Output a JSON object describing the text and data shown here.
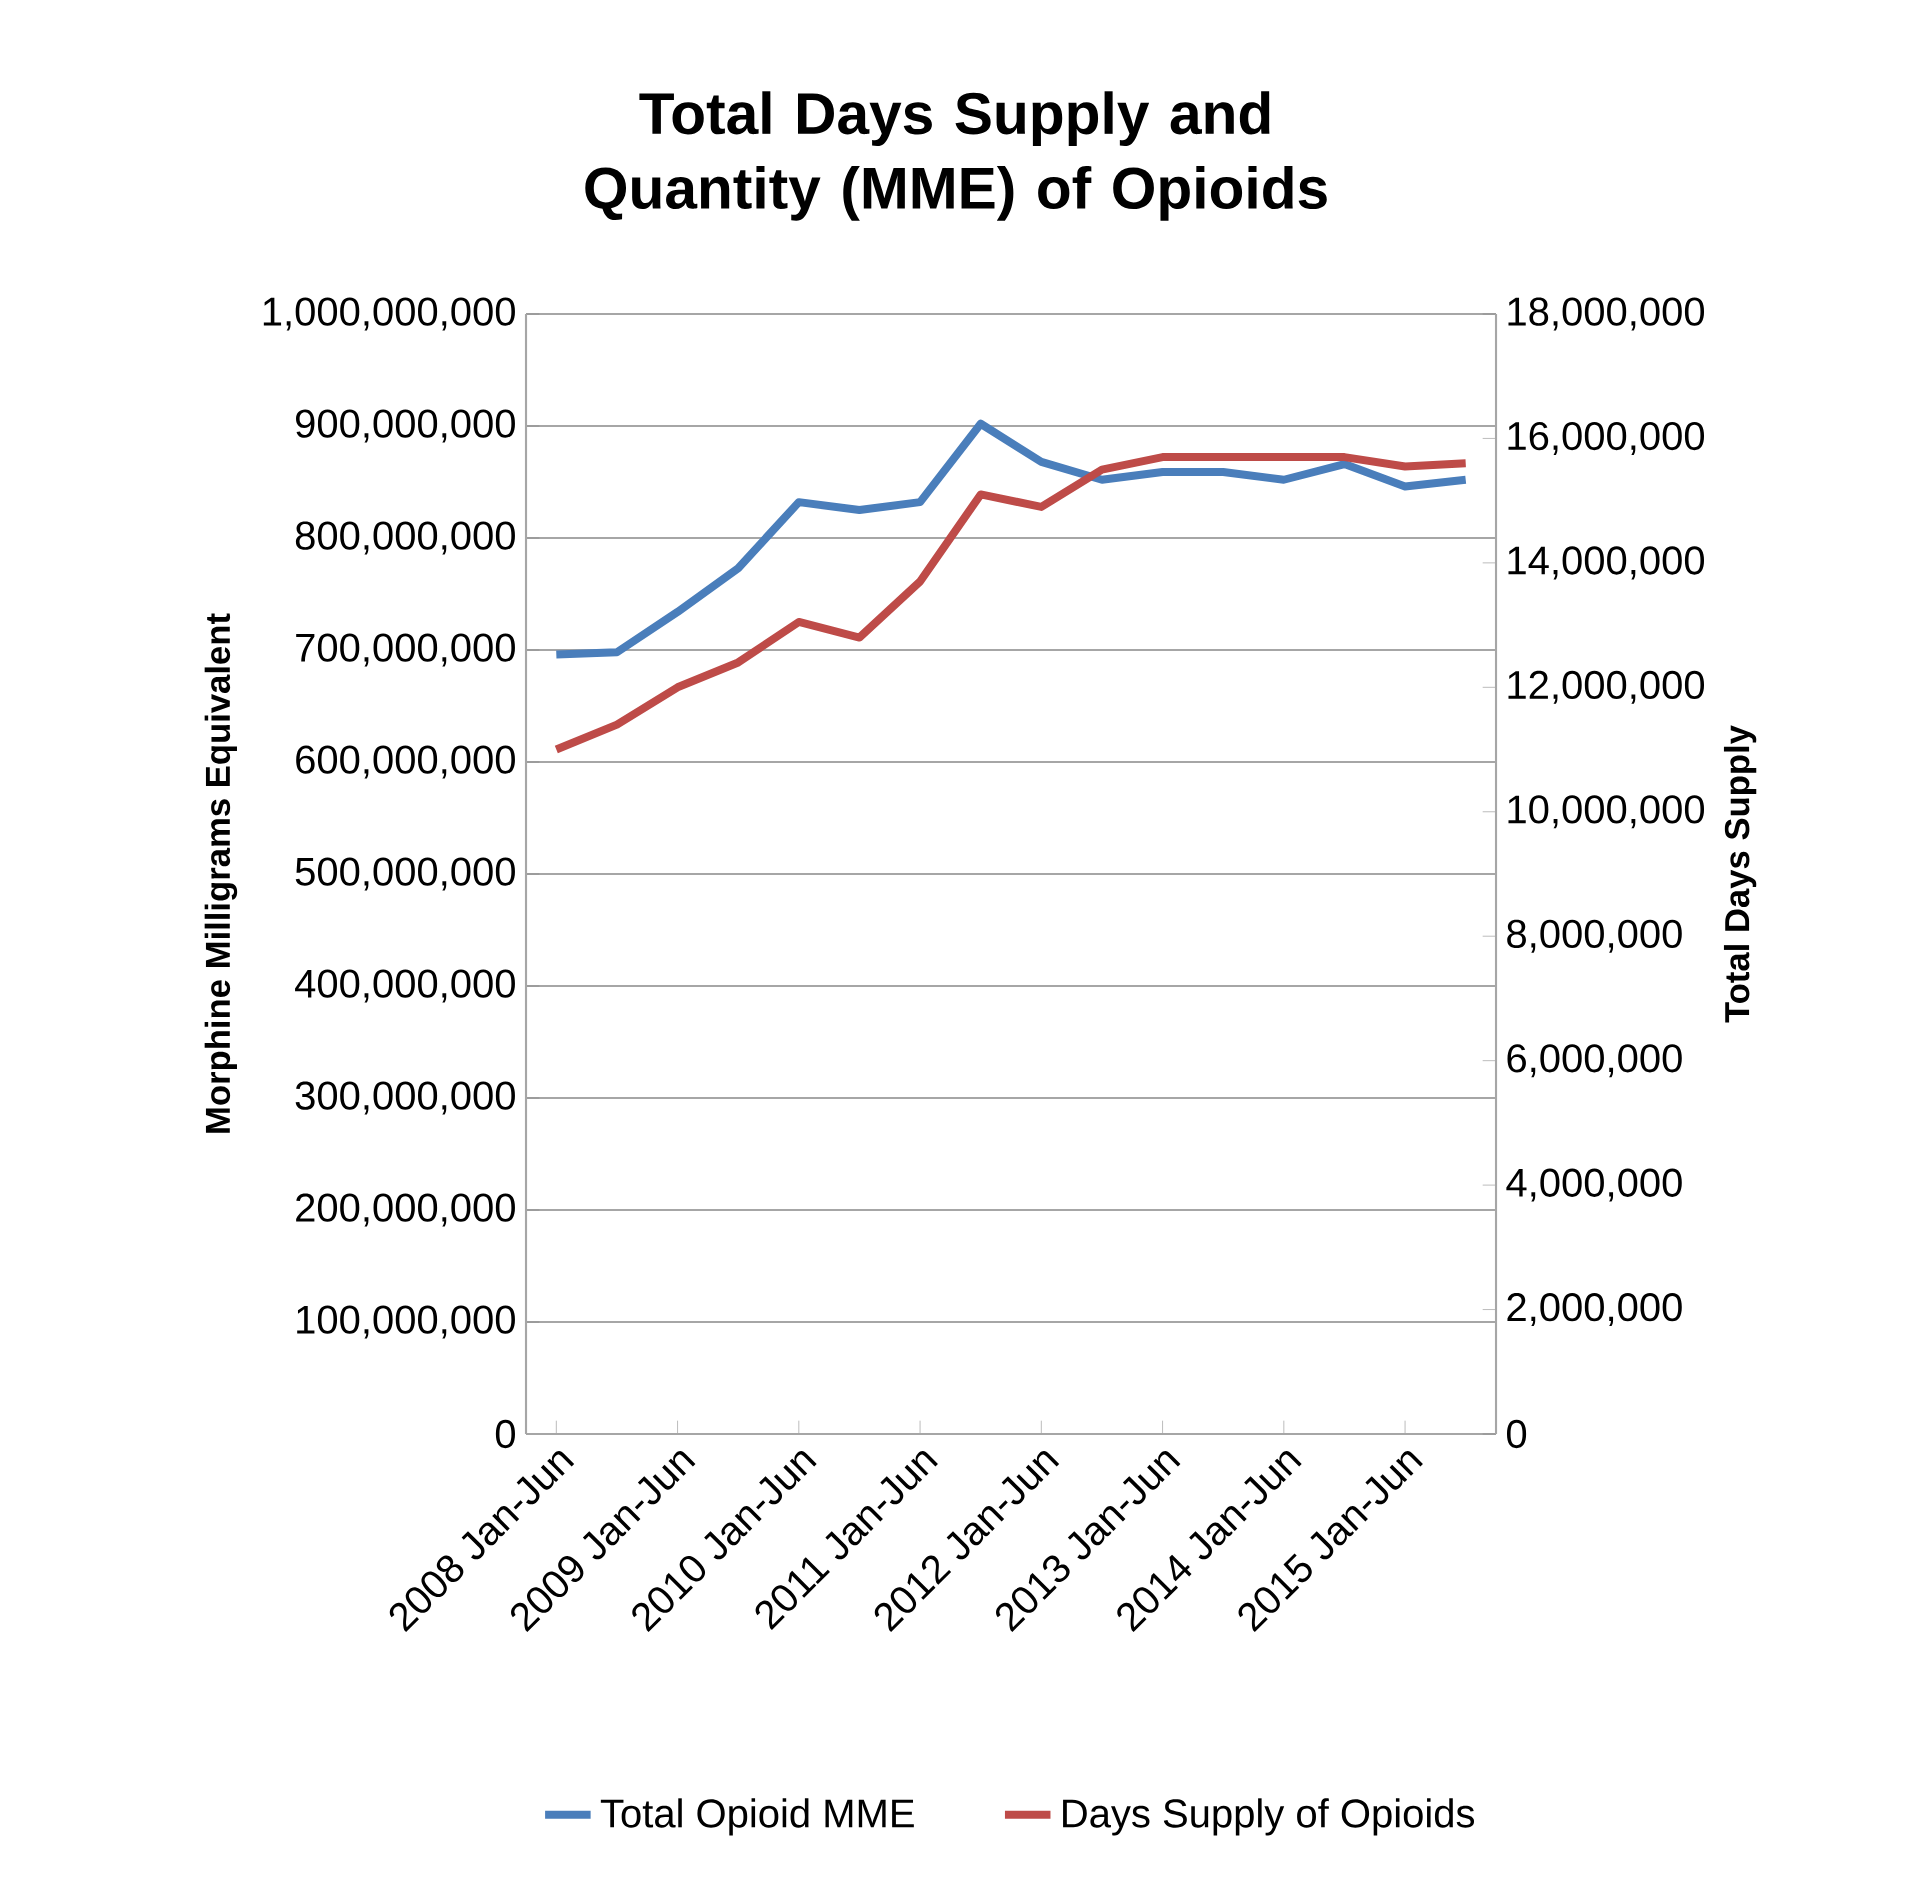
{
  "chart_data": {
    "type": "line",
    "title": "Total Days Supply and Quantity (MME) of Opioids",
    "ylabel": "Morphine Milligrams Equivalent",
    "y2label": "Total Days Supply",
    "categories": [
      "2008 Jan-Jun",
      null,
      "2009 Jan-Jun",
      null,
      "2010 Jan-Jun",
      null,
      "2011 Jan-Jun",
      null,
      "2012 Jan-Jun",
      null,
      "2013 Jan-Jun",
      null,
      "2014 Jan-Jun",
      null,
      "2015 Jan-Jun",
      null
    ],
    "series": [
      {
        "name": "Total Opioid MME",
        "color": "#4a7ebb",
        "values": [
          696000000,
          698000000,
          734000000,
          773000000,
          832000000,
          825000000,
          832000000,
          902000000,
          868000000,
          852000000,
          859000000,
          859000000,
          852000000,
          866000000,
          846000000,
          852000000
        ]
      },
      {
        "name": "Days Supply of Opioids",
        "color": "#be4b48",
        "axis": "y2",
        "values": [
          11000000,
          11400000,
          12000000,
          12400000,
          13050000,
          12800000,
          13700000,
          15100000,
          14900000,
          15500000,
          15700000,
          15700000,
          15700000,
          15700000,
          15550000,
          15600000
        ]
      }
    ],
    "ylim": [
      0,
      1000000000
    ],
    "yticks": [
      {
        "value": 0,
        "label": "0"
      },
      {
        "value": 100000000,
        "label": "100,000,000"
      },
      {
        "value": 200000000,
        "label": "200,000,000"
      },
      {
        "value": 300000000,
        "label": "300,000,000"
      },
      {
        "value": 400000000,
        "label": "400,000,000"
      },
      {
        "value": 500000000,
        "label": "500,000,000"
      },
      {
        "value": 600000000,
        "label": "600,000,000"
      },
      {
        "value": 700000000,
        "label": "700,000,000"
      },
      {
        "value": 800000000,
        "label": "800,000,000"
      },
      {
        "value": 900000000,
        "label": "900,000,000"
      },
      {
        "value": 1000000000,
        "label": "1,000,000,000"
      }
    ],
    "y2lim": [
      0,
      18000000
    ],
    "y2ticks": [
      {
        "value": 0,
        "label": "0"
      },
      {
        "value": 2000000,
        "label": "2,000,000"
      },
      {
        "value": 4000000,
        "label": "4,000,000"
      },
      {
        "value": 6000000,
        "label": "6,000,000"
      },
      {
        "value": 8000000,
        "label": "8,000,000"
      },
      {
        "value": 10000000,
        "label": "10,000,000"
      },
      {
        "value": 12000000,
        "label": "12,000,000"
      },
      {
        "value": 14000000,
        "label": "14,000,000"
      },
      {
        "value": 16000000,
        "label": "16,000,000"
      },
      {
        "value": 18000000,
        "label": "18,000,000"
      }
    ],
    "grid": "y",
    "legend": "bottom",
    "marker": "none",
    "line_style": "solid"
  }
}
